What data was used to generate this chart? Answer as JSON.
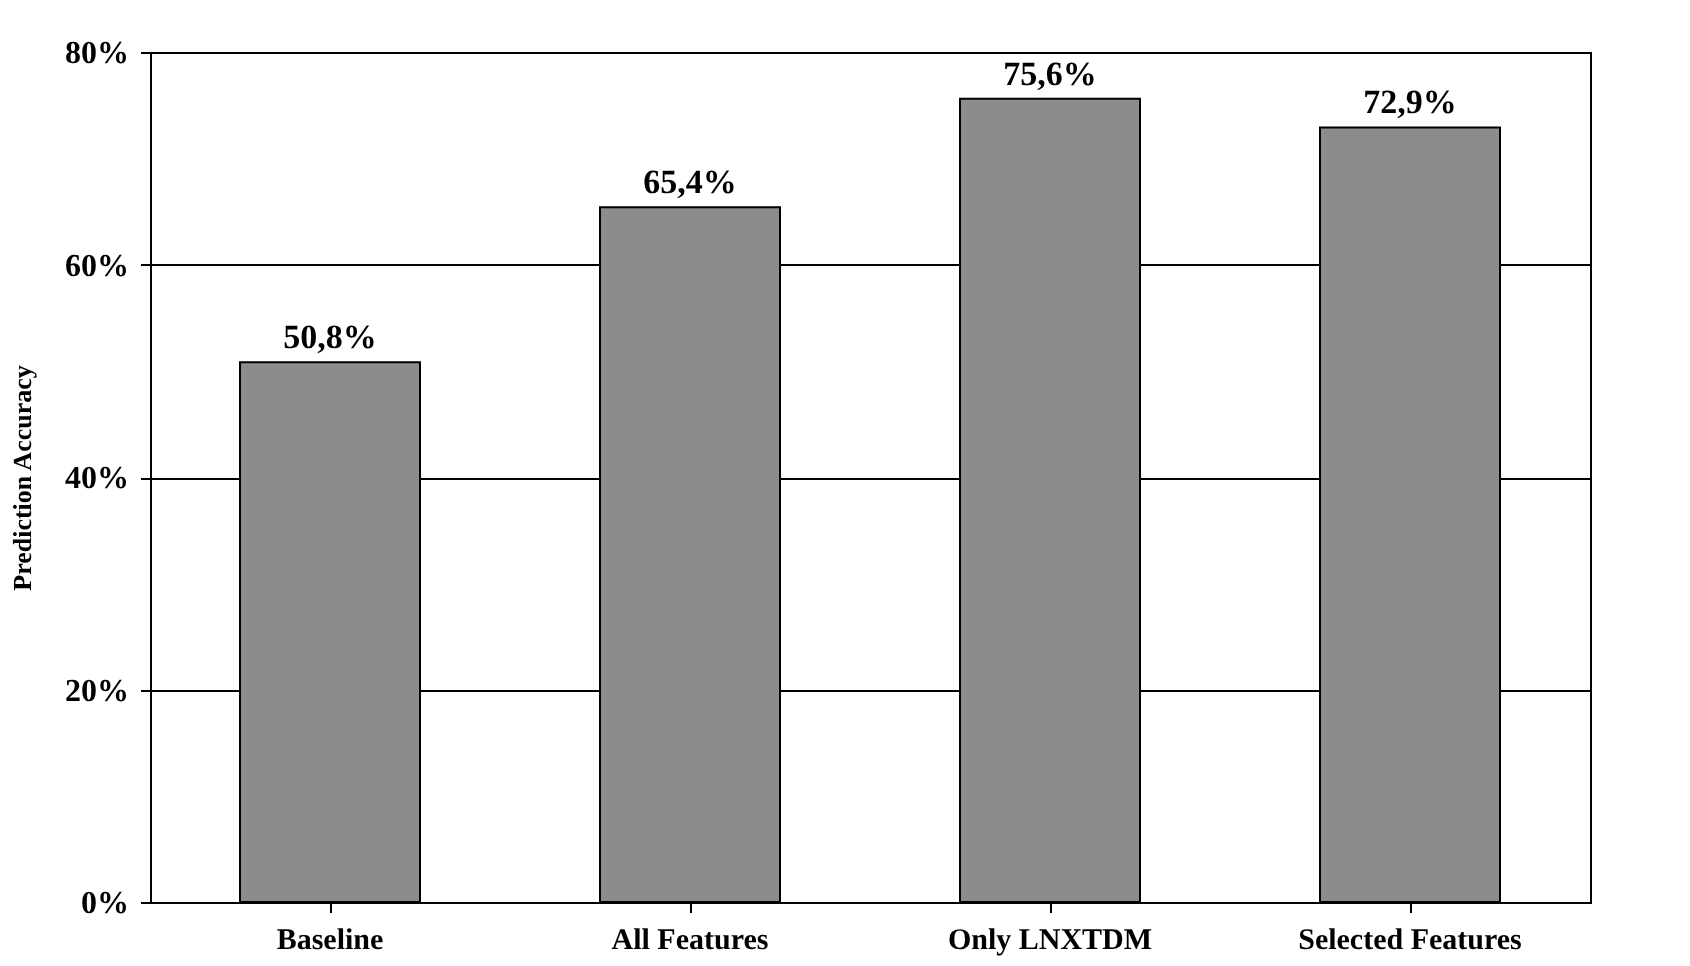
{
  "chart_data": {
    "type": "bar",
    "ylabel": "Prediction Accuracy",
    "categories": [
      "Baseline",
      "All Features",
      "Only LNXTDM",
      "Selected Features"
    ],
    "values": [
      50.8,
      65.4,
      75.6,
      72.9
    ],
    "value_labels": [
      "50,8%",
      "65,4%",
      "75,6%",
      "72,9%"
    ],
    "color": "#8c8c8c",
    "ylim": [
      0,
      80
    ],
    "yticks": [
      {
        "value": 0,
        "label": "0%"
      },
      {
        "value": 20,
        "label": "20%"
      },
      {
        "value": 40,
        "label": "40%"
      },
      {
        "value": 60,
        "label": "60%"
      },
      {
        "value": 80,
        "label": "80%"
      }
    ],
    "grid": "y"
  }
}
